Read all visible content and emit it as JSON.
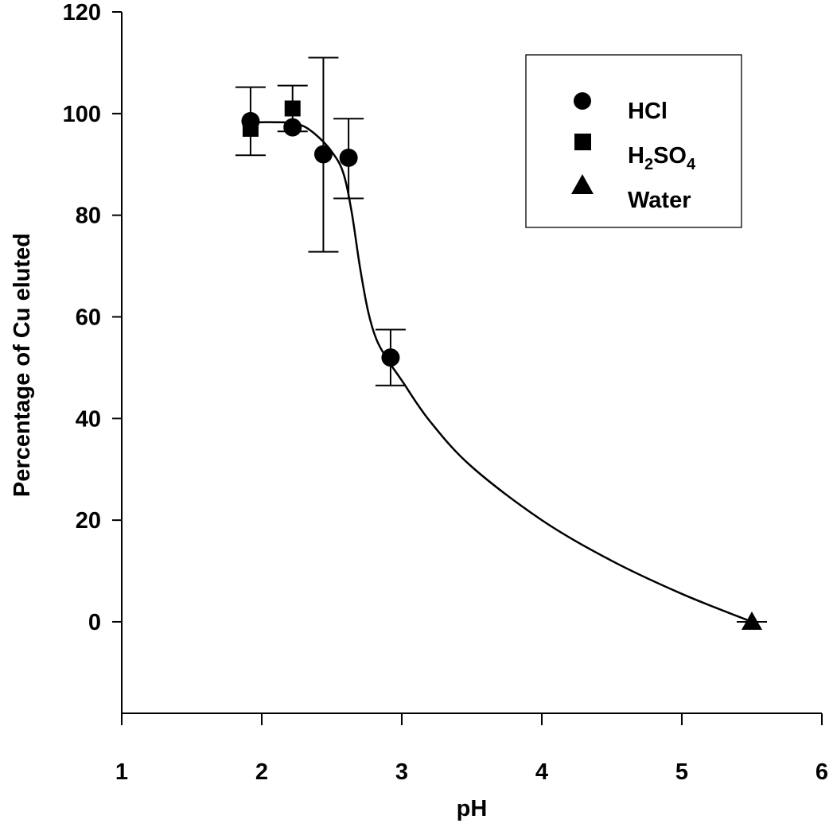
{
  "chart_data": {
    "type": "scatter",
    "xlabel": "pH",
    "ylabel": "Percentage of Cu eluted",
    "xlim": [
      1,
      6
    ],
    "ylim": [
      -18,
      120
    ],
    "xticks": [
      1,
      2,
      3,
      4,
      5,
      6
    ],
    "yticks": [
      0,
      20,
      40,
      60,
      80,
      100,
      120
    ],
    "grid": false,
    "legend": {
      "placement": "top-right",
      "entries": [
        {
          "label": "HCl",
          "marker": "circle"
        },
        {
          "label": "H2SO4",
          "marker": "square"
        },
        {
          "label": "Water",
          "marker": "triangle"
        }
      ]
    },
    "series": [
      {
        "name": "HCl",
        "marker": "circle",
        "points": [
          {
            "x": 1.92,
            "y": 98.5,
            "err_low": 91.8,
            "err_high": 105.2
          },
          {
            "x": 2.22,
            "y": 97.3
          },
          {
            "x": 2.44,
            "y": 92.0,
            "err_low": 72.8,
            "err_high": 111.0
          },
          {
            "x": 2.62,
            "y": 91.3,
            "err_low": 83.3,
            "err_high": 99.0
          },
          {
            "x": 2.92,
            "y": 52.0,
            "err_low": 46.5,
            "err_high": 57.5
          }
        ]
      },
      {
        "name": "H2SO4",
        "marker": "square",
        "points": [
          {
            "x": 1.92,
            "y": 97.0
          },
          {
            "x": 2.22,
            "y": 101.0,
            "err_low": 96.5,
            "err_high": 105.5
          }
        ]
      },
      {
        "name": "Water",
        "marker": "triangle",
        "points": [
          {
            "x": 5.5,
            "y": 0.0,
            "err_low": 0.0,
            "err_high": 0.0
          }
        ]
      }
    ],
    "fit_curve": [
      [
        1.92,
        98.3
      ],
      [
        2.0,
        98.3
      ],
      [
        2.1,
        98.3
      ],
      [
        2.2,
        98.2
      ],
      [
        2.3,
        97.5
      ],
      [
        2.4,
        95.5
      ],
      [
        2.5,
        92.5
      ],
      [
        2.58,
        88.5
      ],
      [
        2.64,
        81.0
      ],
      [
        2.7,
        70.0
      ],
      [
        2.76,
        61.0
      ],
      [
        2.82,
        55.5
      ],
      [
        2.9,
        51.5
      ],
      [
        3.0,
        47.5
      ],
      [
        3.2,
        39.5
      ],
      [
        3.5,
        30.5
      ],
      [
        4.0,
        20.0
      ],
      [
        4.5,
        12.0
      ],
      [
        5.0,
        5.5
      ],
      [
        5.5,
        0.0
      ]
    ]
  }
}
